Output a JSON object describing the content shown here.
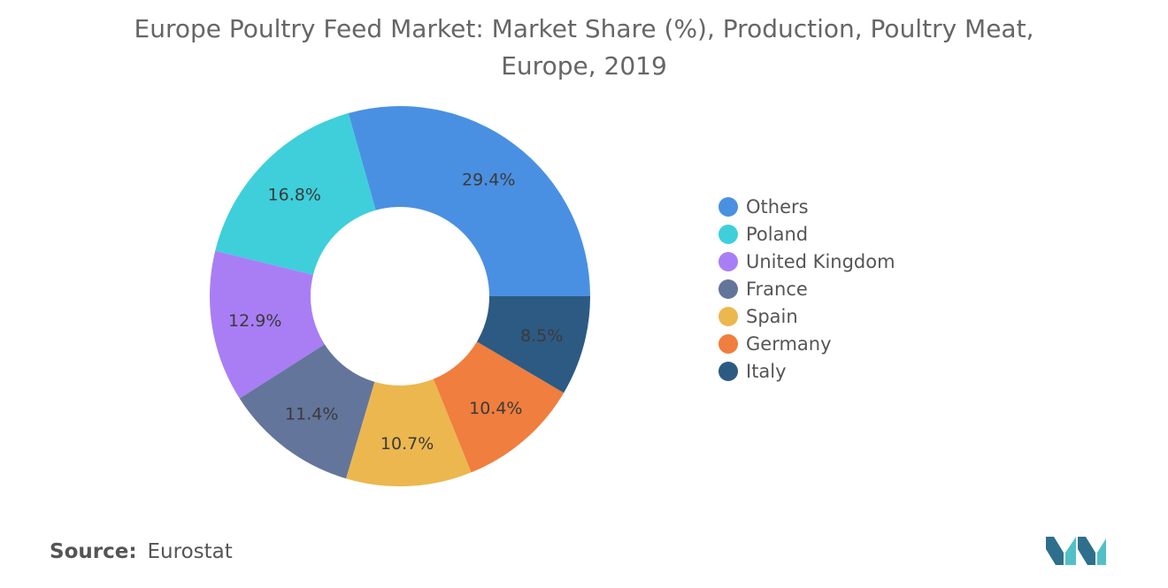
{
  "chart_data": {
    "type": "pie",
    "title": "Europe Poultry Feed Market: Market Share (%), Production, Poultry Meat,",
    "subtitle": "Europe, 2019",
    "categories": [
      "Others",
      "Poland",
      "United Kingdom",
      "France",
      "Spain",
      "Germany",
      "Italy"
    ],
    "values": [
      29.4,
      16.8,
      12.9,
      11.4,
      10.7,
      10.4,
      8.5
    ],
    "value_labels": [
      "29.4%",
      "16.8%",
      "12.9%",
      "11.4%",
      "10.7%",
      "10.4%",
      "8.5%"
    ],
    "colors": [
      "#4a90e2",
      "#3ecfdb",
      "#a97ef5",
      "#64759b",
      "#ecb74e",
      "#f07e3e",
      "#2d5a82"
    ],
    "donut": true,
    "legend_position": "right",
    "start": "3 o'clock",
    "direction": "counterclockwise"
  },
  "source": {
    "label": "Source:",
    "value": "Eurostat"
  },
  "logo": {
    "icon": "mordor-intelligence-logo-icon",
    "colors": [
      "#2e6f8e",
      "#52c0c8"
    ]
  }
}
